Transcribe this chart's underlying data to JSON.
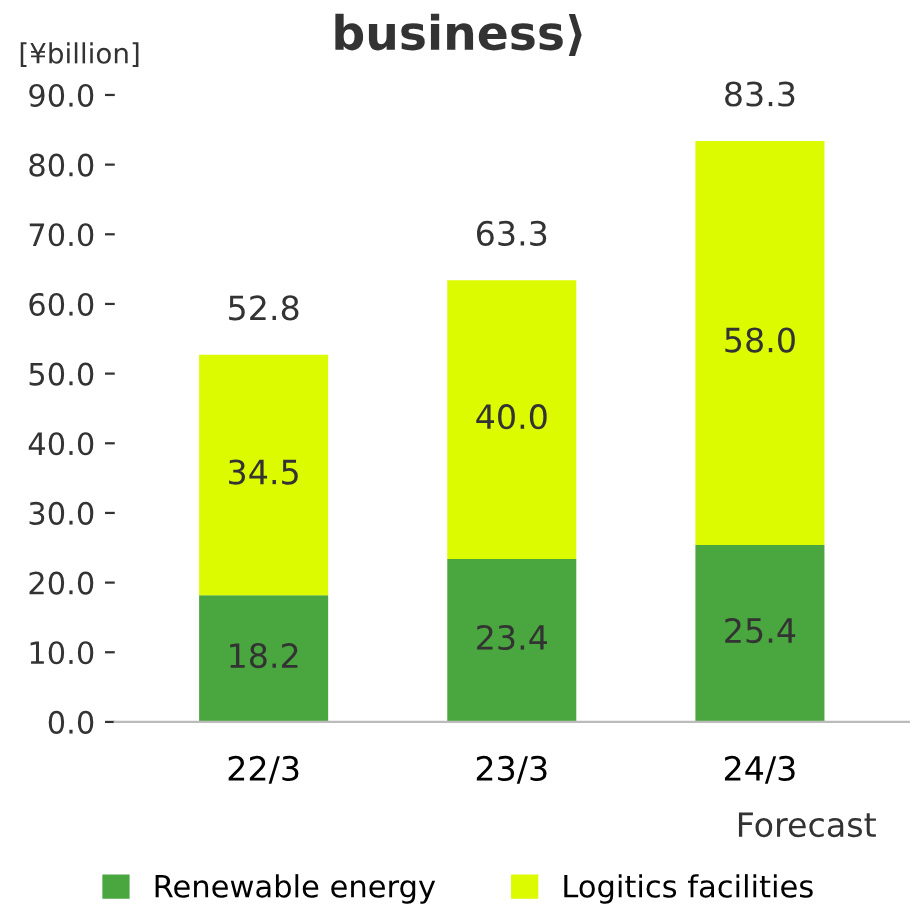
{
  "chart_data": {
    "type": "bar",
    "title": "business⟩",
    "ylabel": "[¥billion]",
    "categories": [
      "22/3",
      "23/3",
      "24/3"
    ],
    "stacked": true,
    "series": [
      {
        "name": "Renewable energy",
        "color": "#4aa63f",
        "values": [
          18.2,
          23.4,
          25.4
        ],
        "value_labels": [
          "18.2",
          "23.4",
          "25.4"
        ]
      },
      {
        "name": "Logitics facilities",
        "color": "#dcfb00",
        "values": [
          34.5,
          40.0,
          58.0
        ],
        "value_labels": [
          "34.5",
          "40.0",
          "58.0"
        ]
      }
    ],
    "totals": [
      "52.8",
      "63.3",
      "83.3"
    ],
    "ylim": [
      0,
      90
    ],
    "yticks": [
      {
        "value": 0,
        "label": "0.0"
      },
      {
        "value": 10,
        "label": "10.0"
      },
      {
        "value": 20,
        "label": "20.0"
      },
      {
        "value": 30,
        "label": "30.0"
      },
      {
        "value": 40,
        "label": "40.0"
      },
      {
        "value": 50,
        "label": "50.0"
      },
      {
        "value": 60,
        "label": "60.0"
      },
      {
        "value": 70,
        "label": "70.0"
      },
      {
        "value": 80,
        "label": "80.0"
      },
      {
        "value": 90,
        "label": "90.0"
      }
    ],
    "annotations": [
      "Forecast"
    ],
    "legend": "bottom",
    "grid": false
  }
}
